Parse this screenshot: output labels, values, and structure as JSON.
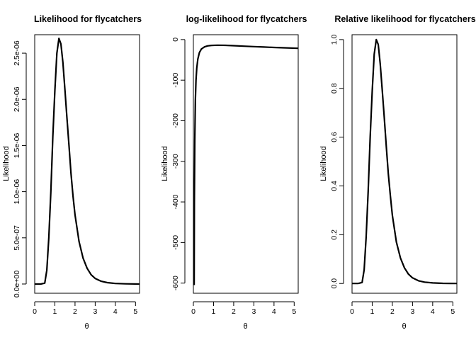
{
  "chart_data": [
    {
      "type": "line",
      "title": "Likelihood for flycatchers",
      "xlabel": "θ",
      "ylabel": "Likelihood",
      "xlim": [
        0,
        5.2
      ],
      "ylim": [
        -1e-07,
        2.7e-06
      ],
      "x_ticks": [
        0,
        1,
        2,
        3,
        4,
        5
      ],
      "x_tick_labels": [
        "0",
        "1",
        "2",
        "3",
        "4",
        "5"
      ],
      "y_ticks": [
        0,
        5e-07,
        1e-06,
        1.5e-06,
        2e-06,
        2.5e-06
      ],
      "y_tick_labels": [
        "0.0e+00",
        "5.0e-07",
        "1.0e-06",
        "1.5e-06",
        "2.0e-06",
        "2.5e-06"
      ],
      "series": [
        {
          "x": [
            0,
            0.3,
            0.5,
            0.6,
            0.7,
            0.8,
            0.9,
            1.0,
            1.1,
            1.2,
            1.3,
            1.4,
            1.5,
            1.6,
            1.7,
            1.8,
            1.9,
            2.0,
            2.2,
            2.4,
            2.6,
            2.8,
            3.0,
            3.3,
            3.6,
            4.0,
            4.5,
            5.2
          ],
          "y": [
            0,
            0,
            1e-08,
            1.5e-07,
            5e-07,
            1e-06,
            1.6e-06,
            2.1e-06,
            2.5e-06,
            2.66e-06,
            2.6e-06,
            2.4e-06,
            2.1e-06,
            1.8e-06,
            1.5e-06,
            1.2e-06,
            9.5e-07,
            7.5e-07,
            4.6e-07,
            2.8e-07,
            1.7e-07,
            1e-07,
            6e-08,
            3e-08,
            1.5e-08,
            6e-09,
            2e-09,
            0
          ]
        }
      ]
    },
    {
      "type": "line",
      "title": "log-likelihood for flycatchers",
      "xlabel": "θ",
      "ylabel": "Likelihood",
      "xlim": [
        0,
        5.2
      ],
      "ylim": [
        -625,
        12
      ],
      "x_ticks": [
        0,
        1,
        2,
        3,
        4,
        5
      ],
      "x_tick_labels": [
        "0",
        "1",
        "2",
        "3",
        "4",
        "5"
      ],
      "y_ticks": [
        0,
        -100,
        -200,
        -300,
        -400,
        -500,
        -600
      ],
      "y_tick_labels": [
        "0",
        "-100",
        "-200",
        "-300",
        "-400",
        "-500",
        "-600"
      ],
      "series": [
        {
          "x": [
            0.04,
            0.05,
            0.07,
            0.1,
            0.13,
            0.17,
            0.22,
            0.3,
            0.4,
            0.55,
            0.7,
            0.9,
            1.2,
            1.6,
            2.0,
            2.5,
            3.0,
            3.5,
            4.0,
            4.5,
            5.2
          ],
          "y": [
            -605,
            -400,
            -250,
            -150,
            -100,
            -70,
            -48,
            -32,
            -23,
            -18,
            -15.5,
            -14.3,
            -13.8,
            -14.2,
            -15,
            -16.3,
            -17.4,
            -18.4,
            -19.4,
            -20.3,
            -21.5
          ]
        }
      ]
    },
    {
      "type": "line",
      "title": "Relative likelihood for flycatchers",
      "xlabel": "θ",
      "ylabel": "Likelihood",
      "xlim": [
        0,
        5.2
      ],
      "ylim": [
        -0.04,
        1.02
      ],
      "x_ticks": [
        0,
        1,
        2,
        3,
        4,
        5
      ],
      "x_tick_labels": [
        "0",
        "1",
        "2",
        "3",
        "4",
        "5"
      ],
      "y_ticks": [
        0,
        0.2,
        0.4,
        0.6,
        0.8,
        1.0
      ],
      "y_tick_labels": [
        "0.0",
        "0.2",
        "0.4",
        "0.6",
        "0.8",
        "1.0"
      ],
      "series": [
        {
          "x": [
            0,
            0.3,
            0.5,
            0.6,
            0.7,
            0.8,
            0.9,
            1.0,
            1.1,
            1.2,
            1.3,
            1.4,
            1.5,
            1.6,
            1.7,
            1.8,
            1.9,
            2.0,
            2.2,
            2.4,
            2.6,
            2.8,
            3.0,
            3.3,
            3.6,
            4.0,
            4.5,
            5.2
          ],
          "y": [
            0,
            0,
            0.004,
            0.056,
            0.19,
            0.38,
            0.6,
            0.79,
            0.94,
            1.0,
            0.98,
            0.9,
            0.79,
            0.68,
            0.56,
            0.45,
            0.36,
            0.28,
            0.17,
            0.105,
            0.064,
            0.038,
            0.023,
            0.011,
            0.0056,
            0.0023,
            0.0008,
            0
          ]
        }
      ]
    }
  ]
}
